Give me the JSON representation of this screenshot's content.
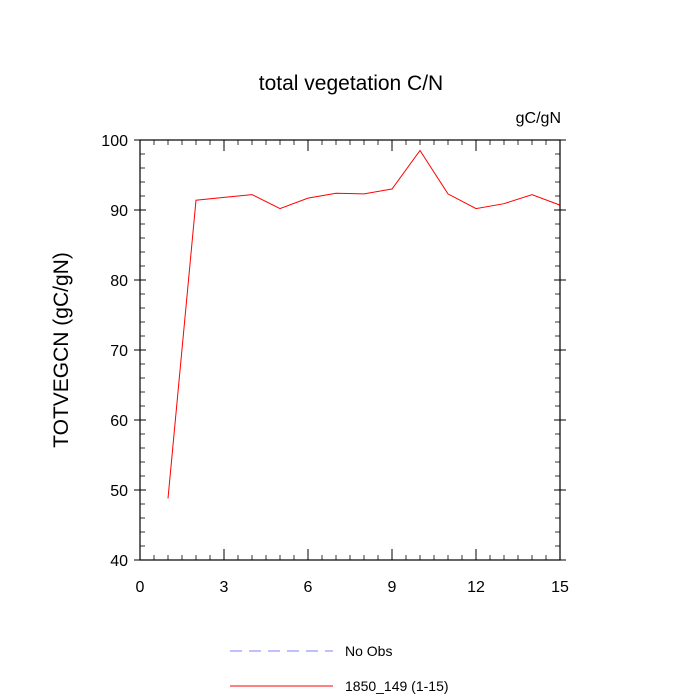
{
  "chart_data": {
    "type": "line",
    "title": "total vegetation C/N",
    "units_label": "gC/gN",
    "xlabel": "",
    "ylabel": "TOTVEGCN  (gC/gN)",
    "xlim": [
      0,
      15
    ],
    "ylim": [
      40,
      100
    ],
    "x_major_ticks": [
      0,
      3,
      6,
      9,
      12,
      15
    ],
    "x_tick_labels": [
      "0",
      "3",
      "6",
      "9",
      "12",
      "15"
    ],
    "y_major_ticks": [
      40,
      50,
      60,
      70,
      80,
      90,
      100
    ],
    "y_tick_labels": [
      "40",
      "50",
      "60",
      "70",
      "80",
      "90",
      "100"
    ],
    "grid": false,
    "legend_position": "bottom-center",
    "series": [
      {
        "name": "1850_149 (1-15)",
        "color": "#ff0000",
        "style": "solid",
        "x": [
          1,
          2,
          3,
          4,
          5,
          6,
          7,
          8,
          9,
          10,
          11,
          12,
          13,
          14,
          15
        ],
        "y": [
          48.8,
          91.4,
          91.8,
          92.2,
          90.2,
          91.7,
          92.4,
          92.3,
          93.0,
          98.5,
          92.3,
          90.2,
          90.9,
          92.2,
          90.7
        ]
      }
    ],
    "legend": [
      {
        "name": "No Obs",
        "color": "#8080ff",
        "style": "dashed"
      },
      {
        "name": "1850_149 (1-15)",
        "color": "#ff0000",
        "style": "solid"
      }
    ]
  }
}
